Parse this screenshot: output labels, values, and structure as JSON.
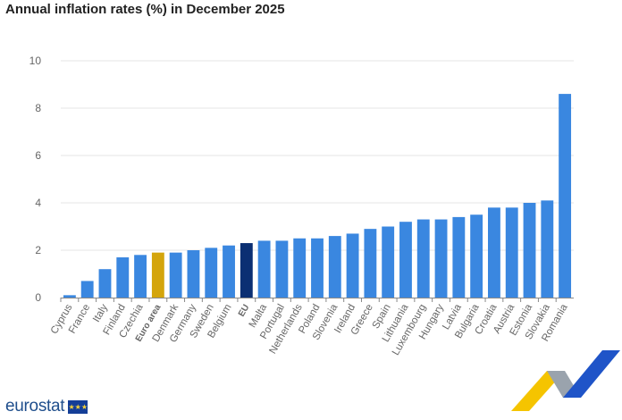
{
  "chart_data": {
    "type": "bar",
    "title": "Annual inflation rates (%) in December 2025",
    "categories": [
      "Cyprus",
      "France",
      "Italy",
      "Finland",
      "Czechia",
      "Euro area",
      "Denmark",
      "Germany",
      "Sweden",
      "Belgium",
      "EU",
      "Malta",
      "Portugal",
      "Netherlands",
      "Poland",
      "Slovenia",
      "Ireland",
      "Greece",
      "Spain",
      "Lithuania",
      "Luxembourg",
      "Hungary",
      "Latvia",
      "Bulgaria",
      "Croatia",
      "Austria",
      "Estonia",
      "Slovakia",
      "Romania"
    ],
    "values": [
      0.1,
      0.7,
      1.2,
      1.7,
      1.8,
      1.9,
      1.9,
      2.0,
      2.1,
      2.2,
      2.3,
      2.4,
      2.4,
      2.5,
      2.5,
      2.6,
      2.7,
      2.9,
      3.0,
      3.2,
      3.3,
      3.3,
      3.4,
      3.5,
      3.8,
      3.8,
      4.0,
      4.1,
      8.6
    ],
    "highlight": {
      "Euro area": "#d4a50c",
      "EU": "#0b2f73"
    },
    "bold_categories": [
      "Euro area",
      "EU"
    ],
    "bar_color": "#3a87e0",
    "ylim": [
      0,
      10
    ],
    "yticks": [
      0,
      2,
      4,
      6,
      8,
      10
    ],
    "grid": true,
    "xlabel": "",
    "ylabel": ""
  },
  "logo": {
    "text": "eurostat"
  }
}
